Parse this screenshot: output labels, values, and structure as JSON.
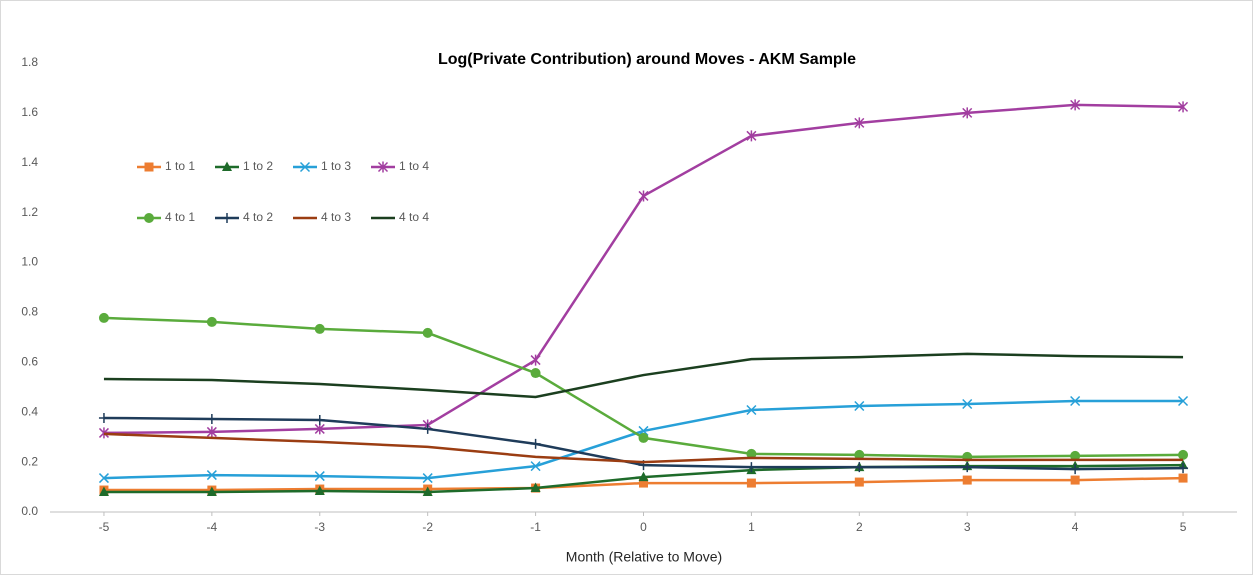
{
  "chart_data": {
    "type": "line",
    "title": "Log(Private Contribution) around Moves - AKM Sample",
    "x_label": "Month (Relative to Move)",
    "x": [
      -5,
      -4,
      -3,
      -2,
      -1,
      0,
      1,
      2,
      3,
      4,
      5
    ],
    "xlim": [
      -5.5,
      5.5
    ],
    "xticks": [
      -5,
      -4,
      -3,
      -2,
      -1,
      0,
      1,
      2,
      3,
      4,
      5
    ],
    "ylim": [
      0,
      1.8
    ],
    "yticks": [
      {
        "value": 0,
        "label": "0.0"
      },
      0.2,
      0.4,
      0.6,
      0.8,
      {
        "value": 1,
        "label": "1.0"
      },
      1.2,
      1.4,
      1.6,
      1.8
    ],
    "grid": false,
    "legend": "upper-left",
    "series": [
      {
        "name": "1 to 1",
        "color": "#ed7d31",
        "marker": "square",
        "values": [
          0.088,
          0.088,
          0.092,
          0.092,
          0.096,
          0.116,
          0.116,
          0.12,
          0.128,
          0.128,
          0.136
        ]
      },
      {
        "name": "1 to 2",
        "color": "#1e6b2a",
        "marker": "triangle",
        "values": [
          0.08,
          0.08,
          0.084,
          0.08,
          0.096,
          0.14,
          0.168,
          0.18,
          0.184,
          0.184,
          0.188
        ]
      },
      {
        "name": "1 to 3",
        "color": "#27a0d8",
        "marker": "x",
        "values": [
          0.136,
          0.148,
          0.144,
          0.136,
          0.184,
          0.325,
          0.409,
          0.425,
          0.433,
          0.445,
          0.445
        ]
      },
      {
        "name": "1 to 4",
        "color": "#a23ea0",
        "marker": "star",
        "values": [
          0.317,
          0.321,
          0.333,
          0.349,
          0.609,
          1.267,
          1.508,
          1.56,
          1.6,
          1.632,
          1.624
        ]
      },
      {
        "name": "4 to 1",
        "color": "#5aab3c",
        "marker": "circle",
        "values": [
          0.778,
          0.762,
          0.734,
          0.718,
          0.557,
          0.297,
          0.233,
          0.229,
          0.221,
          0.225,
          0.229
        ]
      },
      {
        "name": "4 to 2",
        "color": "#1f3c5a",
        "marker": "plus",
        "values": [
          0.377,
          0.373,
          0.369,
          0.333,
          0.273,
          0.188,
          0.18,
          0.18,
          0.18,
          0.172,
          0.176
        ]
      },
      {
        "name": "4 to 3",
        "color": "#9b3d12",
        "marker": "none",
        "values": [
          0.313,
          0.297,
          0.281,
          0.261,
          0.221,
          0.2,
          0.217,
          0.213,
          0.209,
          0.209,
          0.209
        ]
      },
      {
        "name": "4 to 4",
        "color": "#1b3f1f",
        "marker": "none",
        "values": [
          0.533,
          0.529,
          0.513,
          0.489,
          0.461,
          0.549,
          0.613,
          0.621,
          0.634,
          0.625,
          0.621
        ]
      }
    ]
  }
}
